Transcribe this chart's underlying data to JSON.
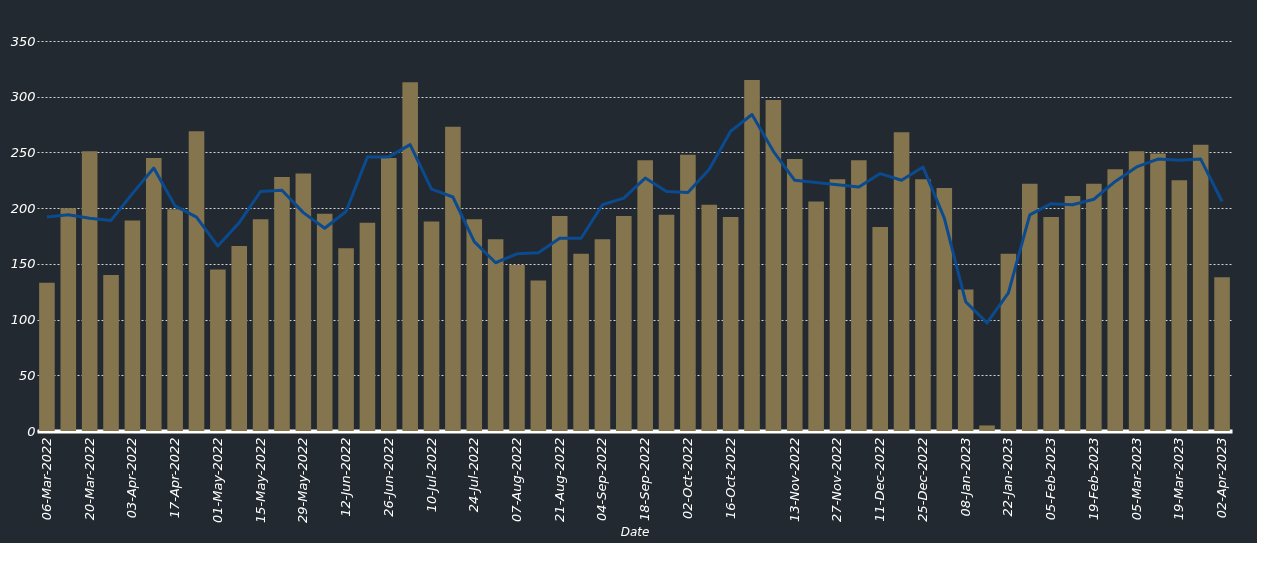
{
  "chart_data": {
    "type": "bar",
    "xlabel": "Date",
    "categories": [
      "06-Mar-2022",
      null,
      "20-Mar-2022",
      null,
      "03-Apr-2022",
      null,
      "17-Apr-2022",
      null,
      "01-May-2022",
      null,
      "15-May-2022",
      null,
      "29-May-2022",
      null,
      "12-Jun-2022",
      null,
      "26-Jun-2022",
      null,
      "10-Jul-2022",
      null,
      "24-Jul-2022",
      null,
      "07-Aug-2022",
      null,
      "21-Aug-2022",
      null,
      "04-Sep-2022",
      null,
      "18-Sep-2022",
      null,
      "02-Oct-2022",
      null,
      "16-Oct-2022",
      null,
      null,
      "13-Nov-2022",
      null,
      "27-Nov-2022",
      null,
      "11-Dec-2022",
      null,
      "25-Dec-2022",
      null,
      "08-Jan-2023",
      null,
      "22-Jan-2023",
      null,
      "05-Feb-2023",
      null,
      "19-Feb-2023",
      null,
      "05-Mar-2023",
      null,
      "19-Mar-2023",
      null,
      "02-Apr-2023"
    ],
    "series": [
      {
        "color": "#84754e",
        "values": [
          133,
          200,
          251,
          140,
          189,
          245,
          199,
          269,
          145,
          166,
          190,
          228,
          231,
          195,
          164,
          187,
          245,
          313,
          188,
          273,
          190,
          172,
          149,
          135,
          193,
          159,
          172,
          193,
          243,
          194,
          248,
          203,
          192,
          315,
          297,
          244,
          206,
          226,
          243,
          183,
          268,
          226,
          218,
          127,
          5,
          159,
          222,
          192,
          211,
          222,
          235,
          251,
          249,
          225,
          257,
          138
        ]
      },
      {
        "type": "line",
        "color": "#0b4a8f",
        "values": [
          192,
          194,
          191,
          189,
          213,
          236,
          202,
          192,
          166,
          187,
          215,
          216,
          196,
          182,
          197,
          246,
          246,
          257,
          217,
          210,
          170,
          151,
          159,
          160,
          173,
          173,
          203,
          209,
          227,
          215,
          214,
          235,
          269,
          284,
          251,
          225,
          223,
          221,
          219,
          231,
          225,
          237,
          191,
          116,
          97,
          124,
          194,
          204,
          203,
          208,
          224,
          237,
          244,
          243,
          244,
          206
        ]
      }
    ],
    "ylim": [
      0,
      350
    ],
    "yticks": [
      0,
      50,
      100,
      150,
      200,
      250,
      300,
      350
    ],
    "grid": "y"
  }
}
